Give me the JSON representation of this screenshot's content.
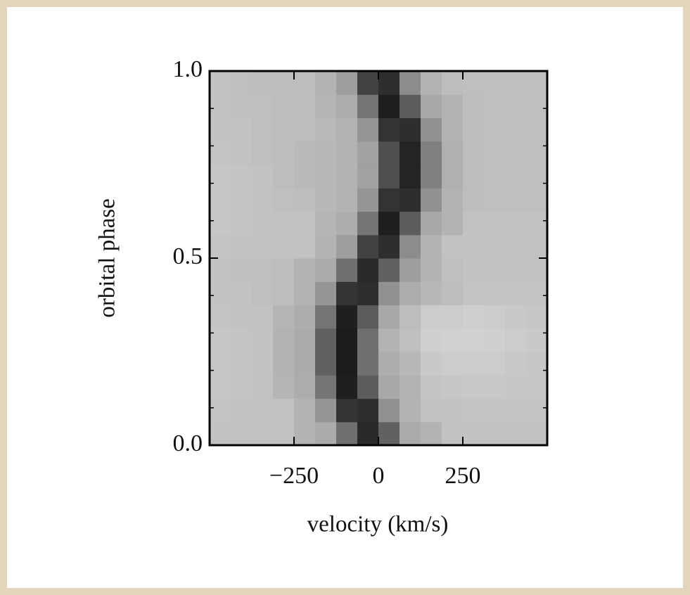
{
  "chart_data": {
    "type": "heatmap",
    "xlabel": "velocity (km/s)",
    "ylabel": "orbital phase",
    "xlim": [
      -500,
      500
    ],
    "ylim": [
      0,
      1
    ],
    "xticks": [
      {
        "value": -250,
        "label": "−250"
      },
      0,
      250
    ],
    "yticks": [
      {
        "value": 0,
        "label": "0.0"
      },
      {
        "value": 0.5,
        "label": "0.5"
      },
      {
        "value": 1,
        "label": "1.0"
      }
    ],
    "yminorticks": [
      0.1,
      0.2,
      0.3,
      0.4,
      0.6,
      0.7,
      0.8,
      0.9
    ],
    "colormap": "gray",
    "x": [
      -468.75,
      -406.25,
      -343.75,
      -281.25,
      -218.75,
      -156.25,
      -93.75,
      -31.25,
      31.25,
      93.75,
      156.25,
      218.75,
      281.25,
      343.75,
      406.25,
      468.75
    ],
    "y": [
      0.03125,
      0.09375,
      0.15625,
      0.21875,
      0.28125,
      0.34375,
      0.40625,
      0.46875,
      0.53125,
      0.59375,
      0.65625,
      0.71875,
      0.78125,
      0.84375,
      0.90625,
      0.96875
    ],
    "z": [
      [
        76,
        76,
        76,
        76,
        70,
        67,
        44,
        16,
        38,
        67,
        70,
        76,
        76,
        76,
        76,
        76
      ],
      [
        77,
        76,
        76,
        76,
        70,
        59,
        20,
        18,
        57,
        70,
        76,
        76,
        77,
        77,
        77,
        77
      ],
      [
        78,
        77,
        76,
        71,
        68,
        46,
        12,
        36,
        66,
        70,
        77,
        78,
        79,
        79,
        78,
        78
      ],
      [
        78,
        77,
        76,
        70,
        67,
        38,
        11,
        44,
        68,
        72,
        79,
        80,
        80,
        80,
        79,
        78
      ],
      [
        78,
        77,
        76,
        70,
        67,
        38,
        11,
        44,
        70,
        75,
        81,
        82,
        82,
        81,
        80,
        79
      ],
      [
        77,
        76,
        76,
        71,
        68,
        46,
        12,
        36,
        66,
        74,
        80,
        80,
        81,
        80,
        79,
        78
      ],
      [
        76,
        76,
        75,
        74,
        70,
        59,
        20,
        18,
        57,
        68,
        72,
        74,
        77,
        77,
        77,
        77
      ],
      [
        76,
        75,
        75,
        74,
        70,
        67,
        44,
        16,
        38,
        62,
        70,
        75,
        76,
        76,
        76,
        76
      ],
      [
        77,
        76,
        76,
        76,
        76,
        70,
        62,
        26,
        18,
        55,
        70,
        76,
        76,
        76,
        76,
        76
      ],
      [
        78,
        77,
        76,
        76,
        76,
        71,
        68,
        46,
        12,
        36,
        66,
        70,
        76,
        76,
        76,
        76
      ],
      [
        78,
        77,
        76,
        75,
        74,
        72,
        70,
        59,
        20,
        18,
        57,
        70,
        74,
        75,
        75,
        75
      ],
      [
        78,
        77,
        76,
        74,
        73,
        72,
        70,
        63,
        31,
        14,
        50,
        69,
        74,
        75,
        75,
        75
      ],
      [
        77,
        76,
        75,
        74,
        73,
        72,
        70,
        63,
        31,
        14,
        50,
        69,
        74,
        75,
        75,
        75
      ],
      [
        76,
        76,
        75,
        74,
        74,
        73,
        70,
        59,
        20,
        18,
        57,
        70,
        74,
        75,
        75,
        75
      ],
      [
        76,
        75,
        75,
        74,
        74,
        71,
        68,
        46,
        12,
        36,
        66,
        70,
        74,
        75,
        75,
        75
      ],
      [
        76,
        75,
        74,
        74,
        74,
        70,
        62,
        26,
        18,
        55,
        70,
        74,
        75,
        75,
        75,
        75
      ]
    ]
  }
}
